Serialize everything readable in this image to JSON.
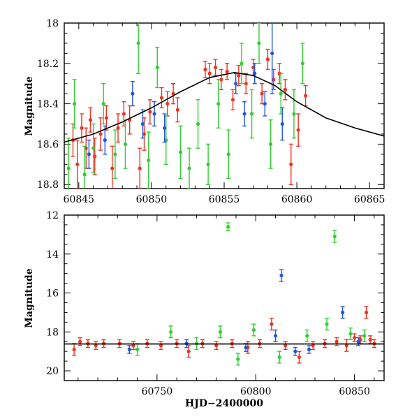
{
  "chart_data": [
    {
      "type": "scatter",
      "title": "",
      "xlabel": "",
      "ylabel": "Magnitude",
      "xlim": [
        60844,
        60866
      ],
      "ylim": [
        18.82,
        18.0
      ],
      "y_inverted": true,
      "x_ticks": [
        60845,
        60850,
        60855,
        60860,
        60865
      ],
      "y_ticks": [
        18,
        18.2,
        18.4,
        18.6,
        18.8
      ],
      "legend": "none",
      "series": [
        {
          "color": "#ee3322",
          "points": [
            {
              "x": 60844.6,
              "y": 18.58,
              "err": 0.08
            },
            {
              "x": 60844.9,
              "y": 18.7,
              "err": 0.12
            },
            {
              "x": 60845.2,
              "y": 18.52,
              "err": 0.07
            },
            {
              "x": 60845.5,
              "y": 18.62,
              "err": 0.1
            },
            {
              "x": 60845.8,
              "y": 18.48,
              "err": 0.06
            },
            {
              "x": 60846.1,
              "y": 18.66,
              "err": 0.09
            },
            {
              "x": 60846.5,
              "y": 18.55,
              "err": 0.08
            },
            {
              "x": 60846.9,
              "y": 18.47,
              "err": 0.06
            },
            {
              "x": 60847.3,
              "y": 18.72,
              "err": 0.11
            },
            {
              "x": 60847.7,
              "y": 18.52,
              "err": 0.07
            },
            {
              "x": 60848.1,
              "y": 18.45,
              "err": 0.06
            },
            {
              "x": 60848.5,
              "y": 18.48,
              "err": 0.07
            },
            {
              "x": 60849.2,
              "y": 18.72,
              "err": 0.1
            },
            {
              "x": 60849.5,
              "y": 18.55,
              "err": 0.08
            },
            {
              "x": 60849.9,
              "y": 18.44,
              "err": 0.06
            },
            {
              "x": 60850.7,
              "y": 18.37,
              "err": 0.05
            },
            {
              "x": 60851.1,
              "y": 18.4,
              "err": 0.06
            },
            {
              "x": 60851.5,
              "y": 18.35,
              "err": 0.05
            },
            {
              "x": 60851.8,
              "y": 18.43,
              "err": 0.06
            },
            {
              "x": 60853.7,
              "y": 18.23,
              "err": 0.04
            },
            {
              "x": 60854.0,
              "y": 18.25,
              "err": 0.05
            },
            {
              "x": 60854.4,
              "y": 18.22,
              "err": 0.04
            },
            {
              "x": 60854.8,
              "y": 18.28,
              "err": 0.05
            },
            {
              "x": 60855.2,
              "y": 18.24,
              "err": 0.04
            },
            {
              "x": 60855.6,
              "y": 18.38,
              "err": 0.05
            },
            {
              "x": 60856.0,
              "y": 18.26,
              "err": 0.05
            },
            {
              "x": 60856.5,
              "y": 18.3,
              "err": 0.05
            },
            {
              "x": 60857.0,
              "y": 18.22,
              "err": 0.04
            },
            {
              "x": 60857.6,
              "y": 18.35,
              "err": 0.05
            },
            {
              "x": 60858.0,
              "y": 18.18,
              "err": 0.05
            },
            {
              "x": 60858.4,
              "y": 18.28,
              "err": 0.05
            },
            {
              "x": 60858.8,
              "y": 18.25,
              "err": 0.05
            },
            {
              "x": 60859.2,
              "y": 18.33,
              "err": 0.05
            },
            {
              "x": 60859.6,
              "y": 18.7,
              "err": 0.1
            },
            {
              "x": 60860.1,
              "y": 18.53,
              "err": 0.08
            },
            {
              "x": 60860.6,
              "y": 18.36,
              "err": 0.05
            }
          ]
        },
        {
          "color": "#33cc33",
          "points": [
            {
              "x": 60844.3,
              "y": 18.72,
              "err": 0.15
            },
            {
              "x": 60844.7,
              "y": 18.4,
              "err": 0.12
            },
            {
              "x": 60845.4,
              "y": 18.75,
              "err": 0.14
            },
            {
              "x": 60846.0,
              "y": 18.62,
              "err": 0.12
            },
            {
              "x": 60846.7,
              "y": 18.4,
              "err": 0.1
            },
            {
              "x": 60847.5,
              "y": 18.65,
              "err": 0.12
            },
            {
              "x": 60848.2,
              "y": 18.6,
              "err": 0.12
            },
            {
              "x": 60849.1,
              "y": 18.1,
              "err": 0.15
            },
            {
              "x": 60849.8,
              "y": 18.68,
              "err": 0.14
            },
            {
              "x": 60850.4,
              "y": 18.22,
              "err": 0.1
            },
            {
              "x": 60851.0,
              "y": 18.58,
              "err": 0.12
            },
            {
              "x": 60852.0,
              "y": 18.64,
              "err": 0.13
            },
            {
              "x": 60852.6,
              "y": 18.72,
              "err": 0.1
            },
            {
              "x": 60853.2,
              "y": 18.5,
              "err": 0.12
            },
            {
              "x": 60853.9,
              "y": 18.7,
              "err": 0.1
            },
            {
              "x": 60854.6,
              "y": 18.4,
              "err": 0.12
            },
            {
              "x": 60855.3,
              "y": 18.65,
              "err": 0.12
            },
            {
              "x": 60856.2,
              "y": 18.2,
              "err": 0.1
            },
            {
              "x": 60856.9,
              "y": 18.45,
              "err": 0.12
            },
            {
              "x": 60857.4,
              "y": 18.1,
              "err": 0.1
            },
            {
              "x": 60858.2,
              "y": 18.6,
              "err": 0.12
            },
            {
              "x": 60858.9,
              "y": 18.35,
              "err": 0.1
            },
            {
              "x": 60859.8,
              "y": 18.45,
              "err": 0.12
            },
            {
              "x": 60860.4,
              "y": 18.2,
              "err": 0.1
            }
          ]
        },
        {
          "color": "#2255dd",
          "points": [
            {
              "x": 60845.7,
              "y": 18.65,
              "err": 0.07
            },
            {
              "x": 60846.8,
              "y": 18.58,
              "err": 0.07
            },
            {
              "x": 60848.7,
              "y": 18.35,
              "err": 0.06
            },
            {
              "x": 60849.4,
              "y": 18.5,
              "err": 0.07
            },
            {
              "x": 60850.2,
              "y": 18.45,
              "err": 0.06
            },
            {
              "x": 60850.9,
              "y": 18.52,
              "err": 0.07
            },
            {
              "x": 60855.8,
              "y": 18.3,
              "err": 0.05
            },
            {
              "x": 60856.4,
              "y": 18.45,
              "err": 0.06
            },
            {
              "x": 60857.1,
              "y": 18.25,
              "err": 0.05
            },
            {
              "x": 60857.8,
              "y": 18.4,
              "err": 0.06
            },
            {
              "x": 60858.3,
              "y": 18.15,
              "err": 0.2
            },
            {
              "x": 60859.0,
              "y": 18.5,
              "err": 0.08
            }
          ]
        }
      ],
      "model_curve": {
        "color": "#000000",
        "points": [
          {
            "x": 60844.0,
            "y": 18.59
          },
          {
            "x": 60846.0,
            "y": 18.55
          },
          {
            "x": 60848.0,
            "y": 18.49
          },
          {
            "x": 60850.0,
            "y": 18.42
          },
          {
            "x": 60852.0,
            "y": 18.34
          },
          {
            "x": 60854.0,
            "y": 18.27
          },
          {
            "x": 60855.7,
            "y": 18.245
          },
          {
            "x": 60857.0,
            "y": 18.26
          },
          {
            "x": 60858.5,
            "y": 18.31
          },
          {
            "x": 60860.0,
            "y": 18.39
          },
          {
            "x": 60862.0,
            "y": 18.47
          },
          {
            "x": 60864.0,
            "y": 18.52
          },
          {
            "x": 60866.0,
            "y": 18.56
          }
        ]
      }
    },
    {
      "type": "scatter",
      "title": "",
      "xlabel": "HJD−2400000",
      "ylabel": "Magnitude",
      "xlim": [
        60703,
        60865
      ],
      "ylim": [
        20.5,
        12.0
      ],
      "y_inverted": true,
      "x_ticks": [
        60750,
        60800,
        60850
      ],
      "y_ticks": [
        12,
        14,
        16,
        18,
        20
      ],
      "legend": "none",
      "baseline_mag": 18.62,
      "series": [
        {
          "color": "#ee3322",
          "points": [
            {
              "x": 60708,
              "y": 18.9,
              "err": 0.3
            },
            {
              "x": 60711,
              "y": 18.5,
              "err": 0.2
            },
            {
              "x": 60715,
              "y": 18.6,
              "err": 0.2
            },
            {
              "x": 60719,
              "y": 18.7,
              "err": 0.2
            },
            {
              "x": 60723,
              "y": 18.6,
              "err": 0.2
            },
            {
              "x": 60731,
              "y": 18.6,
              "err": 0.2
            },
            {
              "x": 60738,
              "y": 18.7,
              "err": 0.2
            },
            {
              "x": 60745,
              "y": 18.6,
              "err": 0.2
            },
            {
              "x": 60752,
              "y": 18.7,
              "err": 0.2
            },
            {
              "x": 60760,
              "y": 18.6,
              "err": 0.2
            },
            {
              "x": 60766,
              "y": 19.0,
              "err": 0.3
            },
            {
              "x": 60773,
              "y": 18.6,
              "err": 0.2
            },
            {
              "x": 60780,
              "y": 18.7,
              "err": 0.2
            },
            {
              "x": 60788,
              "y": 18.6,
              "err": 0.2
            },
            {
              "x": 60796,
              "y": 18.8,
              "err": 0.3
            },
            {
              "x": 60802,
              "y": 18.6,
              "err": 0.2
            },
            {
              "x": 60808,
              "y": 17.6,
              "err": 0.3
            },
            {
              "x": 60815,
              "y": 18.7,
              "err": 0.2
            },
            {
              "x": 60822,
              "y": 19.3,
              "err": 0.3
            },
            {
              "x": 60829,
              "y": 18.7,
              "err": 0.2
            },
            {
              "x": 60835,
              "y": 18.6,
              "err": 0.2
            },
            {
              "x": 60841,
              "y": 18.5,
              "err": 0.2
            },
            {
              "x": 60846,
              "y": 18.7,
              "err": 0.3
            },
            {
              "x": 60850,
              "y": 18.3,
              "err": 0.2
            },
            {
              "x": 60853,
              "y": 18.4,
              "err": 0.2
            },
            {
              "x": 60856,
              "y": 17.0,
              "err": 0.3
            },
            {
              "x": 60858,
              "y": 18.4,
              "err": 0.2
            },
            {
              "x": 60860,
              "y": 18.6,
              "err": 0.2
            }
          ]
        },
        {
          "color": "#33cc33",
          "points": [
            {
              "x": 60740,
              "y": 18.9,
              "err": 0.3
            },
            {
              "x": 60757,
              "y": 18.0,
              "err": 0.3
            },
            {
              "x": 60770,
              "y": 18.6,
              "err": 0.3
            },
            {
              "x": 60782,
              "y": 18.0,
              "err": 0.3
            },
            {
              "x": 60786,
              "y": 12.6,
              "err": 0.2
            },
            {
              "x": 60791,
              "y": 19.4,
              "err": 0.3
            },
            {
              "x": 60799,
              "y": 17.9,
              "err": 0.3
            },
            {
              "x": 60812,
              "y": 19.3,
              "err": 0.3
            },
            {
              "x": 60826,
              "y": 18.2,
              "err": 0.3
            },
            {
              "x": 60836,
              "y": 17.6,
              "err": 0.3
            },
            {
              "x": 60840,
              "y": 13.1,
              "err": 0.3
            },
            {
              "x": 60848,
              "y": 18.1,
              "err": 0.3
            },
            {
              "x": 60855,
              "y": 18.2,
              "err": 0.3
            }
          ]
        },
        {
          "color": "#2255dd",
          "points": [
            {
              "x": 60736,
              "y": 18.9,
              "err": 0.2
            },
            {
              "x": 60765,
              "y": 18.6,
              "err": 0.2
            },
            {
              "x": 60795,
              "y": 18.8,
              "err": 0.2
            },
            {
              "x": 60810,
              "y": 18.2,
              "err": 0.3
            },
            {
              "x": 60813,
              "y": 15.1,
              "err": 0.3
            },
            {
              "x": 60820,
              "y": 19.0,
              "err": 0.2
            },
            {
              "x": 60827,
              "y": 18.9,
              "err": 0.2
            },
            {
              "x": 60844,
              "y": 17.0,
              "err": 0.3
            },
            {
              "x": 60852,
              "y": 18.5,
              "err": 0.2
            }
          ]
        }
      ]
    }
  ]
}
